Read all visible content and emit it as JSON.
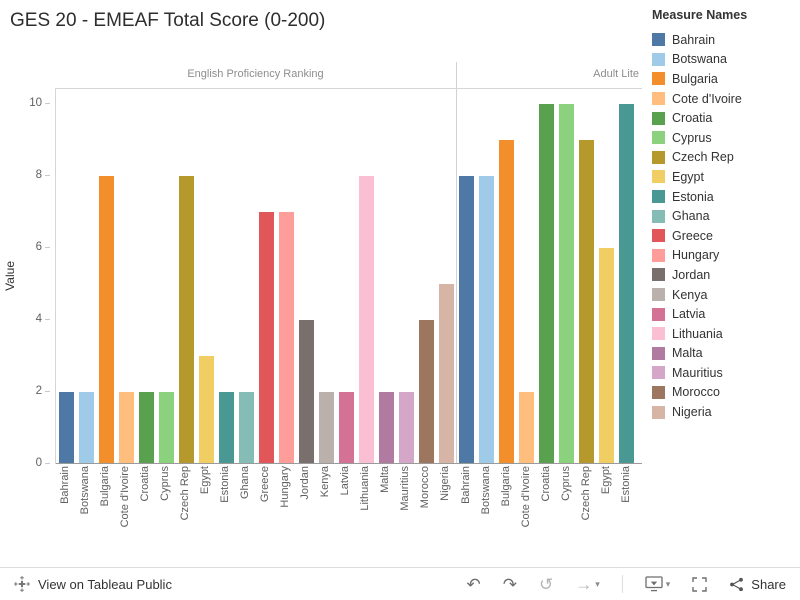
{
  "title": "GES 20 - EMEAF Total Score (0-200)",
  "legend": {
    "title": "Measure Names",
    "items": [
      {
        "label": "Bahrain",
        "color": "#4E79A7"
      },
      {
        "label": "Botswana",
        "color": "#A0CBE8"
      },
      {
        "label": "Bulgaria",
        "color": "#F28E2B"
      },
      {
        "label": "Cote d'Ivoire",
        "color": "#FFBE7D"
      },
      {
        "label": "Croatia",
        "color": "#59A14F"
      },
      {
        "label": "Cyprus",
        "color": "#8CD17D"
      },
      {
        "label": "Czech Rep",
        "color": "#B6992D"
      },
      {
        "label": "Egypt",
        "color": "#F1CE63"
      },
      {
        "label": "Estonia",
        "color": "#499894"
      },
      {
        "label": "Ghana",
        "color": "#86BCB6"
      },
      {
        "label": "Greece",
        "color": "#E15759"
      },
      {
        "label": "Hungary",
        "color": "#FF9D9A"
      },
      {
        "label": "Jordan",
        "color": "#79706E"
      },
      {
        "label": "Kenya",
        "color": "#BAB0AC"
      },
      {
        "label": "Latvia",
        "color": "#D37295"
      },
      {
        "label": "Lithuania",
        "color": "#FABFD2"
      },
      {
        "label": "Malta",
        "color": "#B07AA1"
      },
      {
        "label": "Mauritius",
        "color": "#D4A6C8"
      },
      {
        "label": "Morocco",
        "color": "#9D7660"
      },
      {
        "label": "Nigeria",
        "color": "#D7B5A6"
      }
    ]
  },
  "chart_data": {
    "type": "bar",
    "ylabel": "Value",
    "ylim": [
      0,
      10
    ],
    "yticks": [
      0,
      2,
      4,
      6,
      8,
      10
    ],
    "grid": "off",
    "legend_position": "right",
    "panels": [
      {
        "header": "English Proficiency Ranking",
        "categories": [
          "Bahrain",
          "Botswana",
          "Bulgaria",
          "Cote d'Ivoire",
          "Croatia",
          "Cyprus",
          "Czech Rep",
          "Egypt",
          "Estonia",
          "Ghana",
          "Greece",
          "Hungary",
          "Jordan",
          "Kenya",
          "Latvia",
          "Lithuania",
          "Malta",
          "Mauritius",
          "Morocco",
          "Nigeria"
        ],
        "values": [
          2,
          2,
          8,
          2,
          2,
          2,
          8,
          3,
          2,
          2,
          7,
          7,
          4,
          2,
          2,
          8,
          2,
          2,
          4,
          5
        ]
      },
      {
        "header": "Adult Lite",
        "categories": [
          "Bahrain",
          "Botswana",
          "Bulgaria",
          "Cote d'Ivoire",
          "Croatia",
          "Cyprus",
          "Czech Rep",
          "Egypt",
          "Estonia"
        ],
        "values": [
          8,
          8,
          9,
          2,
          10,
          10,
          9,
          6,
          10
        ]
      }
    ]
  },
  "toolbar": {
    "view_label": "View on Tableau Public",
    "share_label": "Share",
    "icons": {
      "undo": "↶",
      "redo": "↷",
      "replay": "↺",
      "forward": "→",
      "caret": "▾"
    }
  }
}
